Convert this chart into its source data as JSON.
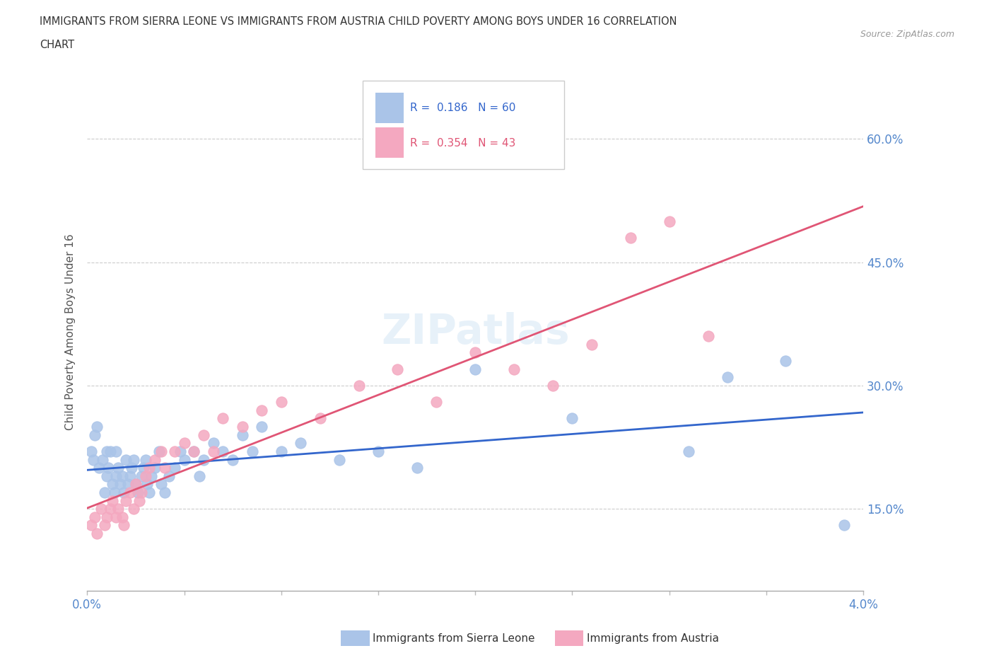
{
  "title_line1": "IMMIGRANTS FROM SIERRA LEONE VS IMMIGRANTS FROM AUSTRIA CHILD POVERTY AMONG BOYS UNDER 16 CORRELATION",
  "title_line2": "CHART",
  "source_text": "Source: ZipAtlas.com",
  "ylabel": "Child Poverty Among Boys Under 16",
  "xlim": [
    0.0,
    0.04
  ],
  "ylim": [
    0.05,
    0.68
  ],
  "xticks": [
    0.0,
    0.005,
    0.01,
    0.015,
    0.02,
    0.025,
    0.03,
    0.035,
    0.04
  ],
  "xticklabels": [
    "0.0%",
    "",
    "",
    "",
    "",
    "",
    "",
    "",
    "4.0%"
  ],
  "yticks": [
    0.15,
    0.3,
    0.45,
    0.6
  ],
  "yticklabels": [
    "15.0%",
    "30.0%",
    "45.0%",
    "60.0%"
  ],
  "grid_color": "#cccccc",
  "background_color": "#ffffff",
  "sierra_leone_color": "#aac4e8",
  "austria_color": "#f4a8c0",
  "sierra_leone_line_color": "#3366cc",
  "austria_line_color": "#e05575",
  "sierra_leone_R": 0.186,
  "sierra_leone_N": 60,
  "austria_R": 0.354,
  "austria_N": 43,
  "sierra_leone_x": [
    0.0002,
    0.0003,
    0.0004,
    0.0005,
    0.0006,
    0.0008,
    0.0009,
    0.001,
    0.001,
    0.0011,
    0.0012,
    0.0013,
    0.0014,
    0.0015,
    0.0015,
    0.0016,
    0.0017,
    0.0018,
    0.0019,
    0.002,
    0.0021,
    0.0022,
    0.0023,
    0.0024,
    0.0025,
    0.0026,
    0.0028,
    0.0029,
    0.003,
    0.0031,
    0.0032,
    0.0033,
    0.0035,
    0.0037,
    0.0038,
    0.004,
    0.0042,
    0.0045,
    0.0048,
    0.005,
    0.0055,
    0.0058,
    0.006,
    0.0065,
    0.007,
    0.0075,
    0.008,
    0.0085,
    0.009,
    0.01,
    0.011,
    0.013,
    0.015,
    0.017,
    0.02,
    0.025,
    0.031,
    0.033,
    0.036,
    0.039
  ],
  "sierra_leone_y": [
    0.22,
    0.21,
    0.24,
    0.25,
    0.2,
    0.21,
    0.17,
    0.22,
    0.19,
    0.2,
    0.22,
    0.18,
    0.17,
    0.22,
    0.19,
    0.2,
    0.18,
    0.19,
    0.17,
    0.21,
    0.18,
    0.19,
    0.2,
    0.21,
    0.18,
    0.17,
    0.19,
    0.2,
    0.21,
    0.18,
    0.17,
    0.19,
    0.2,
    0.22,
    0.18,
    0.17,
    0.19,
    0.2,
    0.22,
    0.21,
    0.22,
    0.19,
    0.21,
    0.23,
    0.22,
    0.21,
    0.24,
    0.22,
    0.25,
    0.22,
    0.23,
    0.21,
    0.22,
    0.2,
    0.32,
    0.26,
    0.22,
    0.31,
    0.33,
    0.13
  ],
  "austria_x": [
    0.0002,
    0.0004,
    0.0005,
    0.0007,
    0.0009,
    0.001,
    0.0012,
    0.0013,
    0.0015,
    0.0016,
    0.0018,
    0.0019,
    0.002,
    0.0022,
    0.0024,
    0.0025,
    0.0027,
    0.0028,
    0.003,
    0.0032,
    0.0035,
    0.0038,
    0.004,
    0.0045,
    0.005,
    0.0055,
    0.006,
    0.0065,
    0.007,
    0.008,
    0.009,
    0.01,
    0.012,
    0.014,
    0.016,
    0.018,
    0.02,
    0.022,
    0.024,
    0.026,
    0.028,
    0.03,
    0.032
  ],
  "austria_y": [
    0.13,
    0.14,
    0.12,
    0.15,
    0.13,
    0.14,
    0.15,
    0.16,
    0.14,
    0.15,
    0.14,
    0.13,
    0.16,
    0.17,
    0.15,
    0.18,
    0.16,
    0.17,
    0.19,
    0.2,
    0.21,
    0.22,
    0.2,
    0.22,
    0.23,
    0.22,
    0.24,
    0.22,
    0.26,
    0.25,
    0.27,
    0.28,
    0.26,
    0.3,
    0.32,
    0.28,
    0.34,
    0.32,
    0.3,
    0.35,
    0.48,
    0.5,
    0.36
  ],
  "watermark_text": "ZIPatlas",
  "legend_box_color_sl": "#aac4e8",
  "legend_box_color_at": "#f4a8c0"
}
